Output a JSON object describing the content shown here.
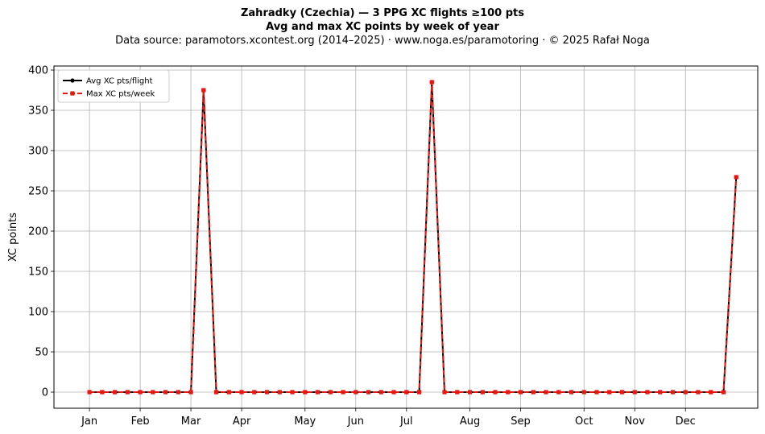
{
  "title_line1": "Zahradky (Czechia)  —  3 PPG XC flights ≥100 pts",
  "title_line2": "Avg and max XC points by week of year",
  "subtitle": "Data source: paramotors.xcontest.org (2014–2025)  ·  www.noga.es/paramotoring  ·  © 2025 Rafał Noga",
  "chart_data": {
    "type": "line",
    "ylabel": "XC points",
    "xlabel": "",
    "x_unit": "week of year",
    "xlim": [
      -1.8,
      53.7
    ],
    "ylim": [
      -20,
      405
    ],
    "yticks": [
      0,
      50,
      100,
      150,
      200,
      250,
      300,
      350,
      400
    ],
    "xticks": [
      {
        "week": 1,
        "label": "Jan"
      },
      {
        "week": 5,
        "label": "Feb"
      },
      {
        "week": 9,
        "label": "Mar"
      },
      {
        "week": 13,
        "label": "Apr"
      },
      {
        "week": 18,
        "label": "May"
      },
      {
        "week": 22,
        "label": "Jun"
      },
      {
        "week": 26,
        "label": "Jul"
      },
      {
        "week": 31,
        "label": "Aug"
      },
      {
        "week": 35,
        "label": "Sep"
      },
      {
        "week": 40,
        "label": "Oct"
      },
      {
        "week": 44,
        "label": "Nov"
      },
      {
        "week": 48,
        "label": "Dec"
      }
    ],
    "x": [
      1,
      2,
      3,
      4,
      5,
      6,
      7,
      8,
      9,
      10,
      11,
      12,
      13,
      14,
      15,
      16,
      17,
      18,
      19,
      20,
      21,
      22,
      23,
      24,
      25,
      26,
      27,
      28,
      29,
      30,
      31,
      32,
      33,
      34,
      35,
      36,
      37,
      38,
      39,
      40,
      41,
      42,
      43,
      44,
      45,
      46,
      47,
      48,
      49,
      50,
      51,
      52
    ],
    "series": [
      {
        "name": "Avg XC pts/flight",
        "color": "#000000",
        "style": "solid",
        "marker": "circle",
        "values": [
          0,
          0,
          0,
          0,
          0,
          0,
          0,
          0,
          0,
          375,
          0,
          0,
          0,
          0,
          0,
          0,
          0,
          0,
          0,
          0,
          0,
          0,
          0,
          0,
          0,
          0,
          0,
          385,
          0,
          0,
          0,
          0,
          0,
          0,
          0,
          0,
          0,
          0,
          0,
          0,
          0,
          0,
          0,
          0,
          0,
          0,
          0,
          0,
          0,
          0,
          0,
          267
        ]
      },
      {
        "name": "Max XC pts/week",
        "color": "#e8170f",
        "style": "dashed",
        "marker": "square",
        "values": [
          0,
          0,
          0,
          0,
          0,
          0,
          0,
          0,
          0,
          375,
          0,
          0,
          0,
          0,
          0,
          0,
          0,
          0,
          0,
          0,
          0,
          0,
          0,
          0,
          0,
          0,
          0,
          385,
          0,
          0,
          0,
          0,
          0,
          0,
          0,
          0,
          0,
          0,
          0,
          0,
          0,
          0,
          0,
          0,
          0,
          0,
          0,
          0,
          0,
          0,
          0,
          267
        ]
      }
    ],
    "grid": true,
    "legend_position": "top-left"
  }
}
